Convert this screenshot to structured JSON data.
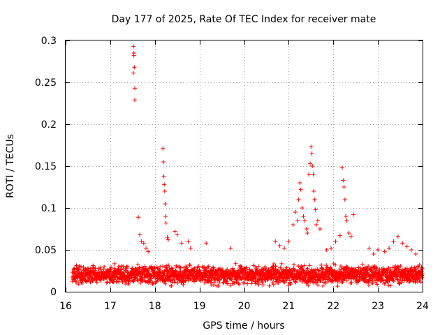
{
  "chart_data": {
    "type": "scatter",
    "title": "Day 177 of 2025, Rate Of TEC Index for receiver mate",
    "xlabel": "GPS time / hours",
    "ylabel": "ROTI / TECUs",
    "xlim": [
      16,
      24
    ],
    "ylim": [
      0,
      0.3
    ],
    "x_ticks": [
      16,
      17,
      18,
      19,
      20,
      21,
      22,
      23,
      24
    ],
    "x_tick_labels": [
      "16",
      "17",
      "18",
      "19",
      "20",
      "21",
      "22",
      "23",
      "24"
    ],
    "y_ticks": [
      0,
      0.05,
      0.1,
      0.15,
      0.2,
      0.25,
      0.3
    ],
    "y_tick_labels": [
      "0",
      "0.05",
      "0.1",
      "0.15",
      "0.2",
      "0.25",
      "0.3"
    ],
    "grid": true,
    "marker": "+",
    "marker_color": "#ff0000",
    "baseline": {
      "description": "dense band of points",
      "x_range": [
        16.15,
        24.0
      ],
      "y_range": [
        0.005,
        0.035
      ]
    },
    "series": [
      {
        "name": "ROTI",
        "x": [
          17.52,
          17.53,
          17.53,
          17.54,
          17.52,
          17.55,
          17.55,
          17.63,
          17.66,
          17.7,
          17.75,
          17.8,
          17.85,
          18.18,
          18.19,
          18.2,
          18.21,
          18.22,
          18.23,
          18.24,
          18.25,
          18.28,
          18.3,
          18.45,
          18.5,
          18.6,
          18.75,
          18.8,
          19.15,
          19.7,
          20.7,
          20.8,
          20.9,
          21.0,
          21.1,
          21.15,
          21.2,
          21.22,
          21.25,
          21.27,
          21.3,
          21.33,
          21.36,
          21.4,
          21.42,
          21.45,
          21.48,
          21.5,
          21.52,
          21.53,
          21.55,
          21.56,
          21.58,
          21.6,
          21.62,
          21.65,
          21.7,
          21.85,
          21.95,
          22.05,
          22.15,
          22.2,
          22.22,
          22.24,
          22.26,
          22.28,
          22.3,
          22.35,
          22.4,
          22.45,
          22.8,
          22.9,
          23.0,
          23.15,
          23.25,
          23.35,
          23.45,
          23.55,
          23.65,
          23.75,
          23.85
        ],
        "y": [
          0.293,
          0.285,
          0.282,
          0.268,
          0.261,
          0.243,
          0.229,
          0.089,
          0.068,
          0.06,
          0.058,
          0.052,
          0.048,
          0.171,
          0.155,
          0.138,
          0.128,
          0.12,
          0.105,
          0.09,
          0.082,
          0.065,
          0.062,
          0.072,
          0.068,
          0.058,
          0.06,
          0.052,
          0.058,
          0.052,
          0.06,
          0.055,
          0.052,
          0.06,
          0.08,
          0.095,
          0.085,
          0.11,
          0.13,
          0.122,
          0.1,
          0.09,
          0.085,
          0.075,
          0.07,
          0.14,
          0.153,
          0.173,
          0.165,
          0.15,
          0.14,
          0.12,
          0.11,
          0.098,
          0.08,
          0.085,
          0.075,
          0.05,
          0.052,
          0.06,
          0.067,
          0.148,
          0.133,
          0.125,
          0.11,
          0.09,
          0.085,
          0.07,
          0.066,
          0.092,
          0.052,
          0.045,
          0.05,
          0.048,
          0.052,
          0.06,
          0.066,
          0.058,
          0.054,
          0.05,
          0.045
        ]
      }
    ]
  }
}
